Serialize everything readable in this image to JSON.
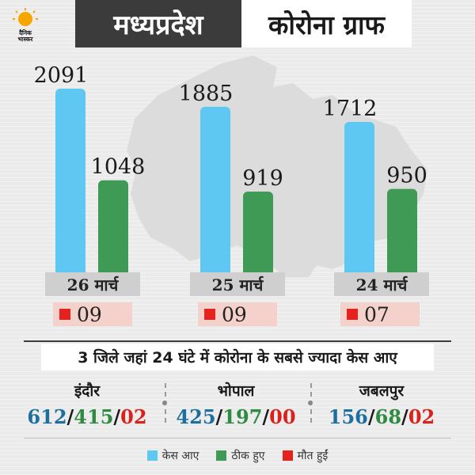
{
  "logo": {
    "text_line1": "दैनिक",
    "text_line2": "भास्कर",
    "sun_color": "#f7a600"
  },
  "header": {
    "title_dark": "मध्यप्रदेश",
    "title_light": "कोरोना ग्राफ"
  },
  "colors": {
    "cases": "#5ec8f2",
    "recovered": "#3f9a55",
    "deaths": "#e4231e",
    "map": "#dcdcdc"
  },
  "chart_data": {
    "type": "bar",
    "categories": [
      "26 मार्च",
      "25 मार्च",
      "24 मार्च"
    ],
    "series": [
      {
        "name": "केस आए",
        "values": [
          2091,
          1885,
          1712
        ]
      },
      {
        "name": "ठीक हुए",
        "values": [
          1048,
          919,
          950
        ]
      },
      {
        "name": "मौत हुईं",
        "values": [
          "09",
          "09",
          "07"
        ]
      }
    ]
  },
  "groups": [
    {
      "date": "26 मार्च",
      "cases": "2091",
      "recovered": "1048",
      "deaths": "09"
    },
    {
      "date": "25 मार्च",
      "cases": "1885",
      "recovered": "919",
      "deaths": "09"
    },
    {
      "date": "24 मार्च",
      "cases": "1712",
      "recovered": "950",
      "deaths": "07"
    }
  ],
  "banner": "3 जिले जहां 24 घंटे में कोरोना के सबसे ज्यादा केस आए",
  "districts": [
    {
      "name": "इंदौर",
      "cases": "612",
      "recovered": "415",
      "deaths": "02"
    },
    {
      "name": "भोपाल",
      "cases": "425",
      "recovered": "197",
      "deaths": "00"
    },
    {
      "name": "जबलपुर",
      "cases": "156",
      "recovered": "68",
      "deaths": "02"
    }
  ],
  "separator": "/",
  "legend": [
    {
      "label": "केस आए",
      "color": "#5ec8f2"
    },
    {
      "label": "ठीक हुए",
      "color": "#3f9a55"
    },
    {
      "label": "मौत हुईं",
      "color": "#e4231e"
    }
  ]
}
